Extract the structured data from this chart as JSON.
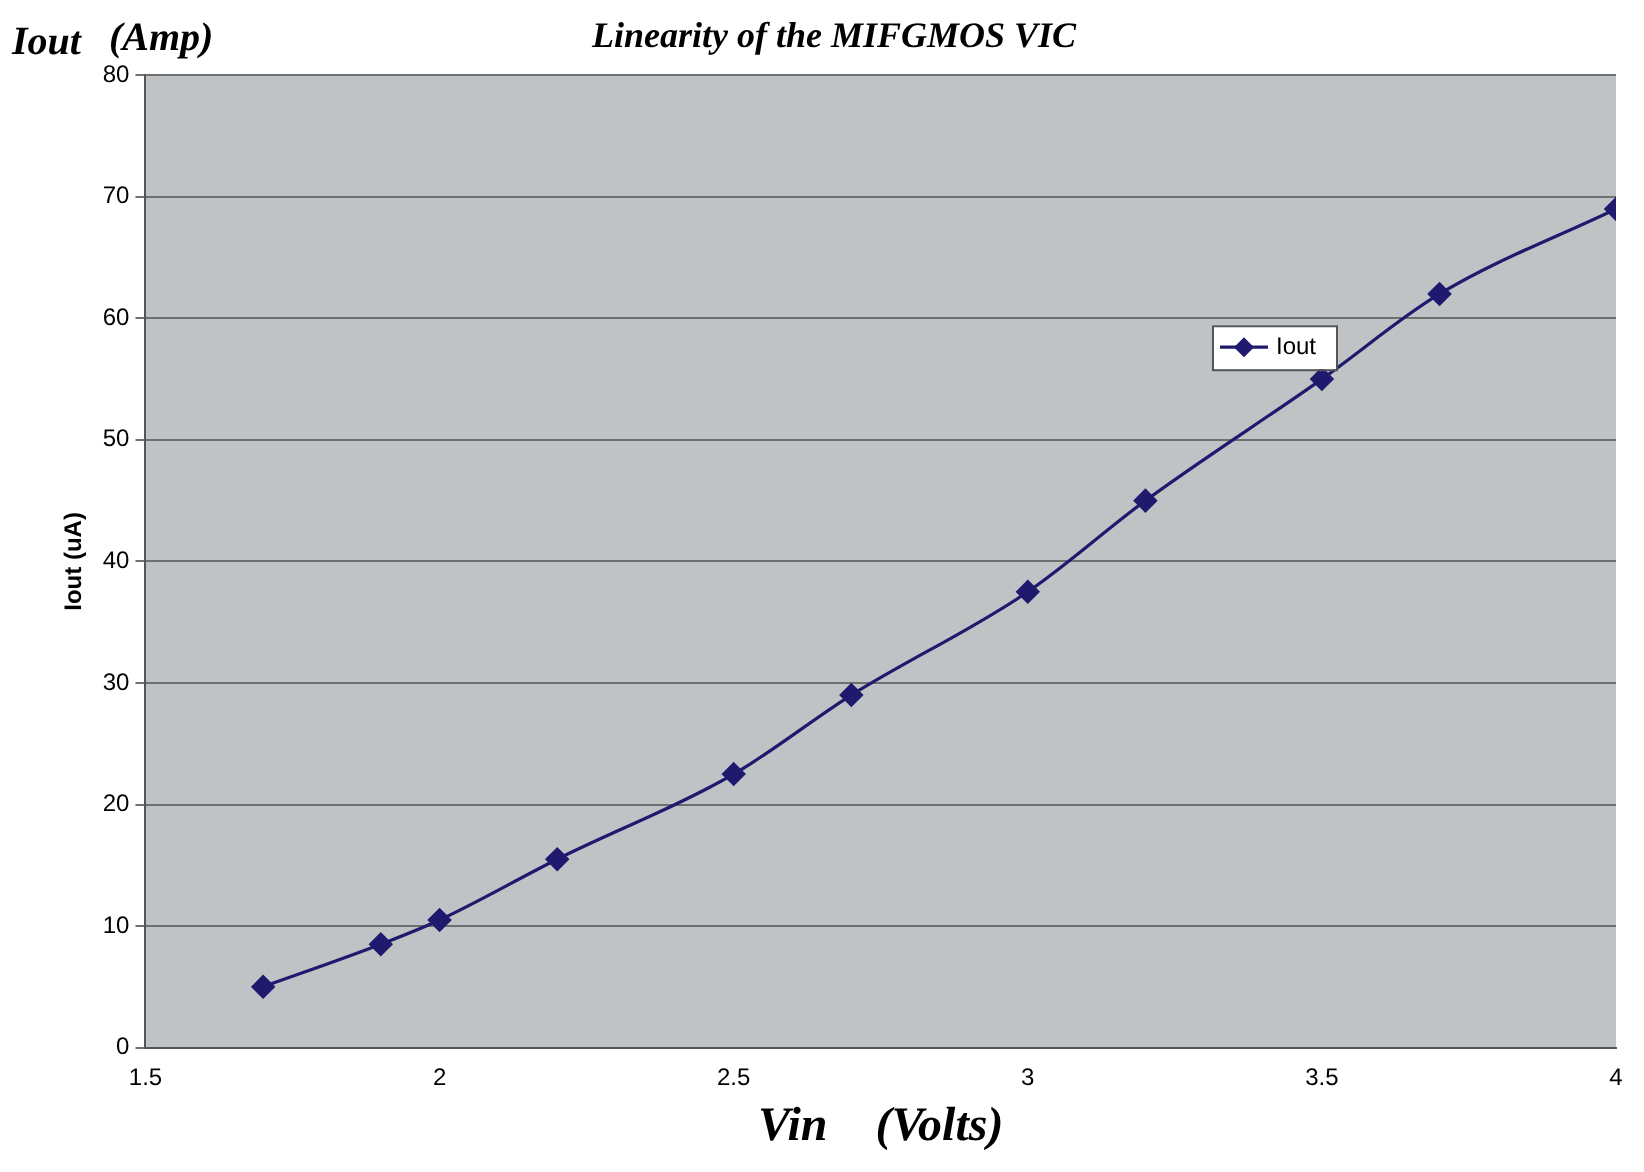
{
  "chart_data": {
    "type": "line",
    "title": "Linearity of the MIFGMOS VIC",
    "xlabel": "Vin    (Volts)",
    "ylabel": "Iout (uA)",
    "annotations": [
      "Iout",
      "(Amp)"
    ],
    "x": [
      1.7,
      1.9,
      2.0,
      2.2,
      2.5,
      2.7,
      3.0,
      3.2,
      3.5,
      3.7,
      4.0
    ],
    "series": [
      {
        "name": "Iout",
        "color": "#1f1a6e",
        "values": [
          5,
          8.5,
          10.5,
          15.5,
          22.5,
          29,
          37.5,
          45,
          55,
          62,
          69
        ]
      }
    ],
    "xlim": [
      1.5,
      4
    ],
    "xticks": [
      1.5,
      2,
      2.5,
      3,
      3.5,
      4
    ],
    "ylim": [
      0,
      80
    ],
    "yticks": [
      0,
      10,
      20,
      30,
      40,
      50,
      60,
      70,
      80
    ],
    "grid": "y",
    "legend": "top right",
    "marker": "diamond",
    "line_style": "solid"
  }
}
